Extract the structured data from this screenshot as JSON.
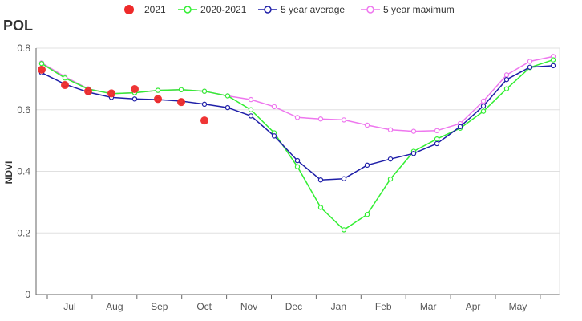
{
  "chart_data": {
    "type": "line",
    "title": "POL",
    "ylabel": "NDVI",
    "xlabel": "",
    "ylim": [
      0,
      0.8
    ],
    "yticks": [
      0,
      0.2,
      0.4,
      0.6,
      0.8
    ],
    "ytick_labels": [
      "0",
      "0.2",
      "0.4",
      "0.6",
      "0.8"
    ],
    "x_month_labels": [
      "Jul",
      "Aug",
      "Sep",
      "Oct",
      "Nov",
      "Dec",
      "Jan",
      "Feb",
      "Mar",
      "Apr",
      "May"
    ],
    "legend_position": "top-center",
    "grid": true,
    "series": [
      {
        "name": "2021",
        "style": "markers",
        "color": "#ee2a2a",
        "values": [
          0.73,
          0.68,
          0.66,
          0.653,
          0.667,
          0.635,
          0.625,
          0.565
        ]
      },
      {
        "name": "2020-2021",
        "style": "line",
        "color": "#33ee33",
        "values": [
          0.75,
          0.703,
          0.667,
          0.652,
          0.655,
          0.663,
          0.665,
          0.66,
          0.645,
          0.6,
          0.525,
          0.415,
          0.283,
          0.21,
          0.26,
          0.375,
          0.465,
          0.505,
          0.54,
          0.595,
          0.668,
          0.737,
          0.762
        ]
      },
      {
        "name": "5 year average",
        "style": "line",
        "color": "#1f1fa8",
        "values": [
          0.72,
          0.683,
          0.657,
          0.64,
          0.635,
          0.633,
          0.628,
          0.618,
          0.607,
          0.58,
          0.515,
          0.435,
          0.372,
          0.376,
          0.42,
          0.44,
          0.458,
          0.49,
          0.545,
          0.612,
          0.698,
          0.738,
          0.743
        ]
      },
      {
        "name": "5 year maximum",
        "style": "line",
        "color": "#ee77ee",
        "values": [
          0.752,
          0.707,
          0.668,
          0.652,
          0.655,
          0.663,
          0.665,
          0.66,
          0.645,
          0.633,
          0.61,
          0.575,
          0.57,
          0.567,
          0.55,
          0.535,
          0.53,
          0.532,
          0.555,
          0.628,
          0.713,
          0.757,
          0.773
        ]
      }
    ]
  }
}
